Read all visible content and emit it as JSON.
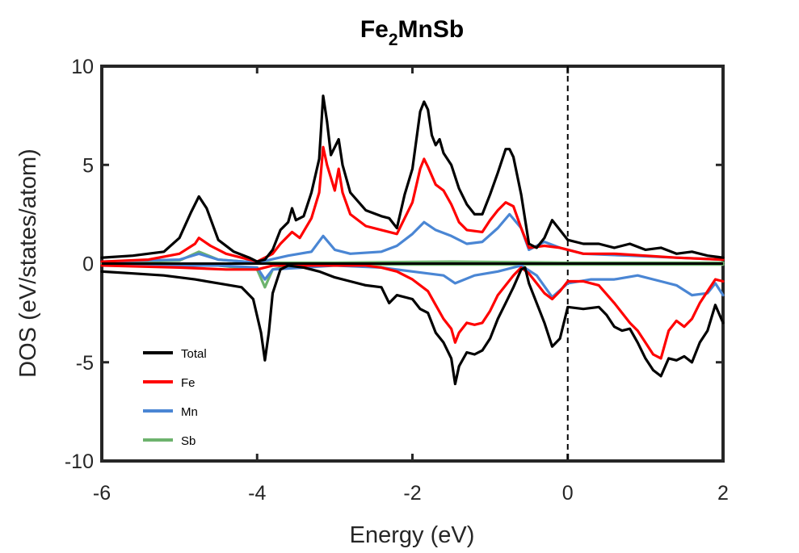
{
  "chart_data": {
    "type": "line",
    "title": {
      "main": "Fe",
      "subscript": "2",
      "rest": "MnSb"
    },
    "xlabel": "Energy (eV)",
    "ylabel": "DOS (eV/states/atom)",
    "xlim": [
      -6,
      2
    ],
    "ylim": [
      -10,
      10
    ],
    "xticks": [
      -6,
      -4,
      -2,
      0,
      2
    ],
    "yticks": [
      -10,
      -5,
      0,
      5,
      10
    ],
    "grid": false,
    "legend": "bottom-left",
    "fermi_level": 0,
    "series": [
      {
        "name": "Total",
        "color": "#000000",
        "up": [
          [
            -6,
            0.3
          ],
          [
            -5.6,
            0.4
          ],
          [
            -5.2,
            0.6
          ],
          [
            -5.0,
            1.3
          ],
          [
            -4.85,
            2.6
          ],
          [
            -4.75,
            3.4
          ],
          [
            -4.65,
            2.8
          ],
          [
            -4.5,
            1.2
          ],
          [
            -4.3,
            0.6
          ],
          [
            -4.1,
            0.3
          ],
          [
            -4.0,
            0.1
          ],
          [
            -3.9,
            0.2
          ],
          [
            -3.8,
            0.7
          ],
          [
            -3.7,
            1.7
          ],
          [
            -3.6,
            2.1
          ],
          [
            -3.55,
            2.8
          ],
          [
            -3.5,
            2.2
          ],
          [
            -3.4,
            2.4
          ],
          [
            -3.3,
            3.6
          ],
          [
            -3.2,
            5.3
          ],
          [
            -3.15,
            8.5
          ],
          [
            -3.1,
            7.2
          ],
          [
            -3.05,
            5.5
          ],
          [
            -2.95,
            6.3
          ],
          [
            -2.9,
            5.0
          ],
          [
            -2.8,
            3.6
          ],
          [
            -2.6,
            2.7
          ],
          [
            -2.4,
            2.4
          ],
          [
            -2.3,
            2.3
          ],
          [
            -2.2,
            1.8
          ],
          [
            -2.1,
            3.5
          ],
          [
            -2.0,
            4.8
          ],
          [
            -1.9,
            7.7
          ],
          [
            -1.85,
            8.2
          ],
          [
            -1.8,
            7.8
          ],
          [
            -1.75,
            6.5
          ],
          [
            -1.7,
            6.0
          ],
          [
            -1.65,
            6.3
          ],
          [
            -1.6,
            5.6
          ],
          [
            -1.5,
            5.0
          ],
          [
            -1.4,
            3.8
          ],
          [
            -1.3,
            3.0
          ],
          [
            -1.2,
            2.5
          ],
          [
            -1.1,
            2.5
          ],
          [
            -1.0,
            3.5
          ],
          [
            -0.9,
            4.6
          ],
          [
            -0.8,
            5.8
          ],
          [
            -0.75,
            5.8
          ],
          [
            -0.7,
            5.4
          ],
          [
            -0.6,
            3.5
          ],
          [
            -0.5,
            1.0
          ],
          [
            -0.4,
            0.8
          ],
          [
            -0.3,
            1.3
          ],
          [
            -0.2,
            2.2
          ],
          [
            -0.1,
            1.7
          ],
          [
            0.0,
            1.2
          ],
          [
            0.2,
            1.0
          ],
          [
            0.4,
            1.0
          ],
          [
            0.6,
            0.8
          ],
          [
            0.8,
            1.0
          ],
          [
            1.0,
            0.7
          ],
          [
            1.2,
            0.8
          ],
          [
            1.4,
            0.5
          ],
          [
            1.6,
            0.6
          ],
          [
            1.8,
            0.4
          ],
          [
            2.0,
            0.3
          ]
        ],
        "down": [
          [
            -6,
            -0.4
          ],
          [
            -5.6,
            -0.5
          ],
          [
            -5.2,
            -0.6
          ],
          [
            -4.8,
            -0.8
          ],
          [
            -4.5,
            -1.0
          ],
          [
            -4.2,
            -1.2
          ],
          [
            -4.05,
            -1.8
          ],
          [
            -3.95,
            -3.5
          ],
          [
            -3.9,
            -4.9
          ],
          [
            -3.85,
            -3.5
          ],
          [
            -3.8,
            -1.5
          ],
          [
            -3.7,
            -0.3
          ],
          [
            -3.6,
            -0.1
          ],
          [
            -3.4,
            -0.2
          ],
          [
            -3.2,
            -0.4
          ],
          [
            -3.0,
            -0.7
          ],
          [
            -2.8,
            -0.9
          ],
          [
            -2.6,
            -1.1
          ],
          [
            -2.4,
            -1.2
          ],
          [
            -2.3,
            -2.0
          ],
          [
            -2.2,
            -1.6
          ],
          [
            -2.0,
            -1.8
          ],
          [
            -1.9,
            -2.3
          ],
          [
            -1.8,
            -2.5
          ],
          [
            -1.7,
            -3.5
          ],
          [
            -1.6,
            -4.0
          ],
          [
            -1.5,
            -4.8
          ],
          [
            -1.45,
            -6.1
          ],
          [
            -1.4,
            -5.2
          ],
          [
            -1.3,
            -4.5
          ],
          [
            -1.2,
            -4.6
          ],
          [
            -1.1,
            -4.4
          ],
          [
            -1.0,
            -3.8
          ],
          [
            -0.9,
            -2.8
          ],
          [
            -0.8,
            -2.0
          ],
          [
            -0.7,
            -1.2
          ],
          [
            -0.6,
            -0.3
          ],
          [
            -0.55,
            -0.2
          ],
          [
            -0.5,
            -1.0
          ],
          [
            -0.4,
            -2.0
          ],
          [
            -0.3,
            -3.0
          ],
          [
            -0.2,
            -4.2
          ],
          [
            -0.1,
            -3.8
          ],
          [
            0.0,
            -2.2
          ],
          [
            0.2,
            -2.3
          ],
          [
            0.4,
            -2.2
          ],
          [
            0.5,
            -2.6
          ],
          [
            0.6,
            -3.2
          ],
          [
            0.7,
            -3.4
          ],
          [
            0.8,
            -3.3
          ],
          [
            0.9,
            -4.0
          ],
          [
            1.0,
            -4.8
          ],
          [
            1.1,
            -5.4
          ],
          [
            1.2,
            -5.7
          ],
          [
            1.3,
            -4.8
          ],
          [
            1.4,
            -4.9
          ],
          [
            1.5,
            -4.7
          ],
          [
            1.6,
            -5.0
          ],
          [
            1.7,
            -4.0
          ],
          [
            1.8,
            -3.4
          ],
          [
            1.9,
            -2.1
          ],
          [
            2.0,
            -3.0
          ]
        ]
      },
      {
        "name": "Fe",
        "color": "#ff0000",
        "up": [
          [
            -6,
            0.1
          ],
          [
            -5.4,
            0.2
          ],
          [
            -5.0,
            0.5
          ],
          [
            -4.8,
            1.0
          ],
          [
            -4.75,
            1.3
          ],
          [
            -4.6,
            0.9
          ],
          [
            -4.4,
            0.5
          ],
          [
            -4.0,
            0.1
          ],
          [
            -3.8,
            0.5
          ],
          [
            -3.7,
            1.0
          ],
          [
            -3.55,
            1.6
          ],
          [
            -3.45,
            1.3
          ],
          [
            -3.3,
            2.3
          ],
          [
            -3.2,
            3.6
          ],
          [
            -3.15,
            5.9
          ],
          [
            -3.1,
            5.0
          ],
          [
            -3.0,
            3.7
          ],
          [
            -2.95,
            4.8
          ],
          [
            -2.9,
            3.6
          ],
          [
            -2.8,
            2.5
          ],
          [
            -2.6,
            1.9
          ],
          [
            -2.4,
            1.7
          ],
          [
            -2.2,
            1.5
          ],
          [
            -2.0,
            3.1
          ],
          [
            -1.9,
            4.8
          ],
          [
            -1.85,
            5.3
          ],
          [
            -1.8,
            4.9
          ],
          [
            -1.7,
            4.0
          ],
          [
            -1.6,
            3.7
          ],
          [
            -1.5,
            3.0
          ],
          [
            -1.4,
            2.1
          ],
          [
            -1.3,
            1.7
          ],
          [
            -1.1,
            1.6
          ],
          [
            -1.0,
            2.2
          ],
          [
            -0.9,
            2.7
          ],
          [
            -0.8,
            3.1
          ],
          [
            -0.7,
            2.9
          ],
          [
            -0.6,
            1.8
          ],
          [
            -0.5,
            0.8
          ],
          [
            -0.3,
            0.9
          ],
          [
            -0.1,
            0.8
          ],
          [
            0.2,
            0.5
          ],
          [
            0.6,
            0.5
          ],
          [
            1.0,
            0.4
          ],
          [
            1.4,
            0.3
          ],
          [
            2.0,
            0.2
          ]
        ],
        "down": [
          [
            -6,
            -0.1
          ],
          [
            -5.0,
            -0.2
          ],
          [
            -4.4,
            -0.3
          ],
          [
            -4.0,
            -0.3
          ],
          [
            -3.8,
            -0.1
          ],
          [
            -3.0,
            -0.1
          ],
          [
            -2.6,
            -0.1
          ],
          [
            -2.4,
            -0.2
          ],
          [
            -2.2,
            -0.4
          ],
          [
            -2.0,
            -0.8
          ],
          [
            -1.8,
            -1.4
          ],
          [
            -1.7,
            -2.1
          ],
          [
            -1.6,
            -2.8
          ],
          [
            -1.5,
            -3.3
          ],
          [
            -1.45,
            -4.0
          ],
          [
            -1.4,
            -3.5
          ],
          [
            -1.3,
            -3.0
          ],
          [
            -1.2,
            -3.1
          ],
          [
            -1.1,
            -3.0
          ],
          [
            -1.0,
            -2.4
          ],
          [
            -0.9,
            -1.6
          ],
          [
            -0.8,
            -1.1
          ],
          [
            -0.7,
            -0.6
          ],
          [
            -0.6,
            -0.2
          ],
          [
            -0.5,
            -0.5
          ],
          [
            -0.4,
            -1.0
          ],
          [
            -0.3,
            -1.5
          ],
          [
            -0.2,
            -1.8
          ],
          [
            -0.1,
            -1.4
          ],
          [
            0.0,
            -0.9
          ],
          [
            0.2,
            -0.9
          ],
          [
            0.4,
            -1.1
          ],
          [
            0.6,
            -2.0
          ],
          [
            0.7,
            -2.5
          ],
          [
            0.8,
            -3.0
          ],
          [
            0.9,
            -3.4
          ],
          [
            1.0,
            -4.0
          ],
          [
            1.1,
            -4.6
          ],
          [
            1.2,
            -4.8
          ],
          [
            1.3,
            -3.4
          ],
          [
            1.4,
            -2.9
          ],
          [
            1.5,
            -3.2
          ],
          [
            1.6,
            -2.8
          ],
          [
            1.7,
            -2.0
          ],
          [
            1.8,
            -1.4
          ],
          [
            1.9,
            -0.8
          ],
          [
            2.0,
            -0.9
          ]
        ]
      },
      {
        "name": "Mn",
        "color": "#4a86d4",
        "up": [
          [
            -6,
            0.1
          ],
          [
            -5.0,
            0.2
          ],
          [
            -4.75,
            0.5
          ],
          [
            -4.5,
            0.2
          ],
          [
            -4.0,
            0.05
          ],
          [
            -3.6,
            0.4
          ],
          [
            -3.3,
            0.6
          ],
          [
            -3.15,
            1.4
          ],
          [
            -3.0,
            0.7
          ],
          [
            -2.8,
            0.5
          ],
          [
            -2.4,
            0.6
          ],
          [
            -2.2,
            0.9
          ],
          [
            -2.0,
            1.5
          ],
          [
            -1.85,
            2.1
          ],
          [
            -1.7,
            1.7
          ],
          [
            -1.5,
            1.4
          ],
          [
            -1.3,
            1.0
          ],
          [
            -1.1,
            1.1
          ],
          [
            -0.9,
            1.8
          ],
          [
            -0.75,
            2.5
          ],
          [
            -0.6,
            1.8
          ],
          [
            -0.5,
            0.7
          ],
          [
            -0.3,
            1.1
          ],
          [
            -0.1,
            0.8
          ],
          [
            0.2,
            0.5
          ],
          [
            0.8,
            0.4
          ],
          [
            1.4,
            0.3
          ],
          [
            2.0,
            0.2
          ]
        ],
        "down": [
          [
            -6,
            -0.1
          ],
          [
            -4.5,
            -0.1
          ],
          [
            -4.0,
            -0.2
          ],
          [
            -3.9,
            -0.8
          ],
          [
            -3.8,
            -0.3
          ],
          [
            -3.0,
            -0.1
          ],
          [
            -2.4,
            -0.2
          ],
          [
            -2.0,
            -0.4
          ],
          [
            -1.6,
            -0.6
          ],
          [
            -1.45,
            -1.0
          ],
          [
            -1.2,
            -0.6
          ],
          [
            -0.9,
            -0.4
          ],
          [
            -0.6,
            -0.1
          ],
          [
            -0.4,
            -0.6
          ],
          [
            -0.2,
            -1.7
          ],
          [
            0.0,
            -1.0
          ],
          [
            0.3,
            -0.8
          ],
          [
            0.6,
            -0.8
          ],
          [
            0.9,
            -0.6
          ],
          [
            1.2,
            -0.9
          ],
          [
            1.4,
            -1.1
          ],
          [
            1.6,
            -1.6
          ],
          [
            1.8,
            -1.5
          ],
          [
            1.9,
            -1.0
          ],
          [
            2.0,
            -1.6
          ]
        ]
      },
      {
        "name": "Sb",
        "color": "#6db36d",
        "up": [
          [
            -6,
            0.05
          ],
          [
            -5.0,
            0.15
          ],
          [
            -4.75,
            0.6
          ],
          [
            -4.5,
            0.2
          ],
          [
            -4.0,
            0.05
          ],
          [
            -3.0,
            0.05
          ],
          [
            -1.5,
            0.1
          ],
          [
            0,
            0.05
          ],
          [
            2.0,
            0.05
          ]
        ],
        "down": [
          [
            -6,
            -0.05
          ],
          [
            -4.5,
            -0.1
          ],
          [
            -4.0,
            -0.3
          ],
          [
            -3.9,
            -1.2
          ],
          [
            -3.8,
            -0.3
          ],
          [
            -3.5,
            -0.05
          ],
          [
            0,
            -0.05
          ],
          [
            2.0,
            -0.05
          ]
        ]
      }
    ]
  }
}
